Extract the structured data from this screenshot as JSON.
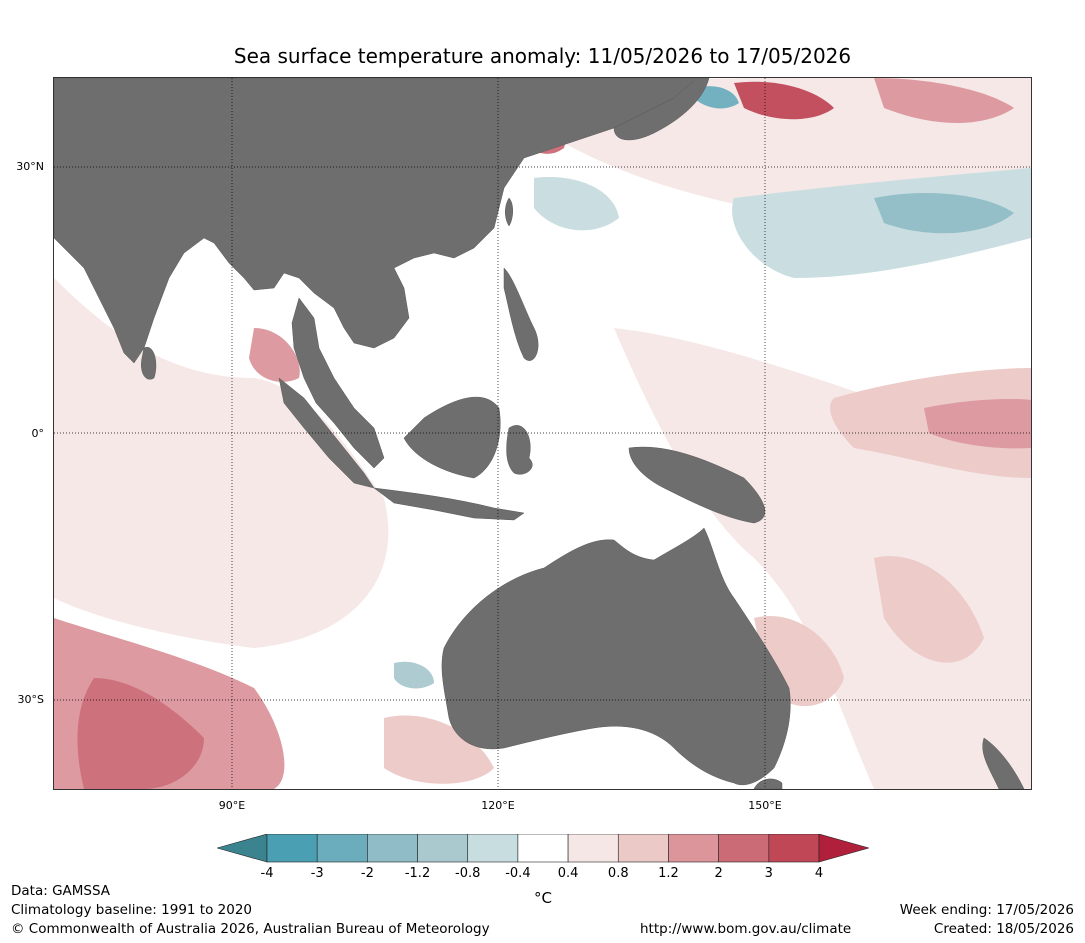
{
  "title": "Sea surface temperature anomaly: 11/05/2026 to 17/05/2026",
  "map": {
    "lat_labels": [
      "30°N",
      "0°",
      "30°S"
    ],
    "lon_labels": [
      "90°E",
      "120°E",
      "150°E"
    ],
    "land_color": "#6e6e6e",
    "palette": {
      "neg4": "#3b838f",
      "neg3": "#4aa0b2",
      "neg2": "#6cadbd",
      "neg12": "#8fbcc6",
      "neg08": "#a9c9cf",
      "neg04": "#c8dde0",
      "neutral": "#ffffff",
      "pos04": "#f5e7e6",
      "pos08": "#ebc9c6",
      "pos12": "#dc959b",
      "pos2": "#cb6b76",
      "pos3": "#bf4756",
      "pos4": "#b0203b"
    }
  },
  "colorbar": {
    "ticks": [
      "-4",
      "-3",
      "-2",
      "-1.2",
      "-0.8",
      "-0.4",
      "0.4",
      "0.8",
      "1.2",
      "2",
      "3",
      "4"
    ],
    "colors": [
      "#3b838f",
      "#4aa0b2",
      "#6cadbd",
      "#8fbcc6",
      "#a9c9cf",
      "#c8dde0",
      "#ffffff",
      "#f5e7e6",
      "#ebc9c6",
      "#dc959b",
      "#cb6b76",
      "#bf4756",
      "#b0203b"
    ],
    "units": "°C"
  },
  "footer": {
    "data_source": "Data: GAMSSA",
    "baseline": "Climatology baseline: 1991 to 2020",
    "copyright": "© Commonwealth of Australia 2026, Australian Bureau of Meteorology",
    "url": "http://www.bom.gov.au/climate",
    "week_ending": "Week ending: 17/05/2026",
    "created": "Created: 18/05/2026"
  }
}
